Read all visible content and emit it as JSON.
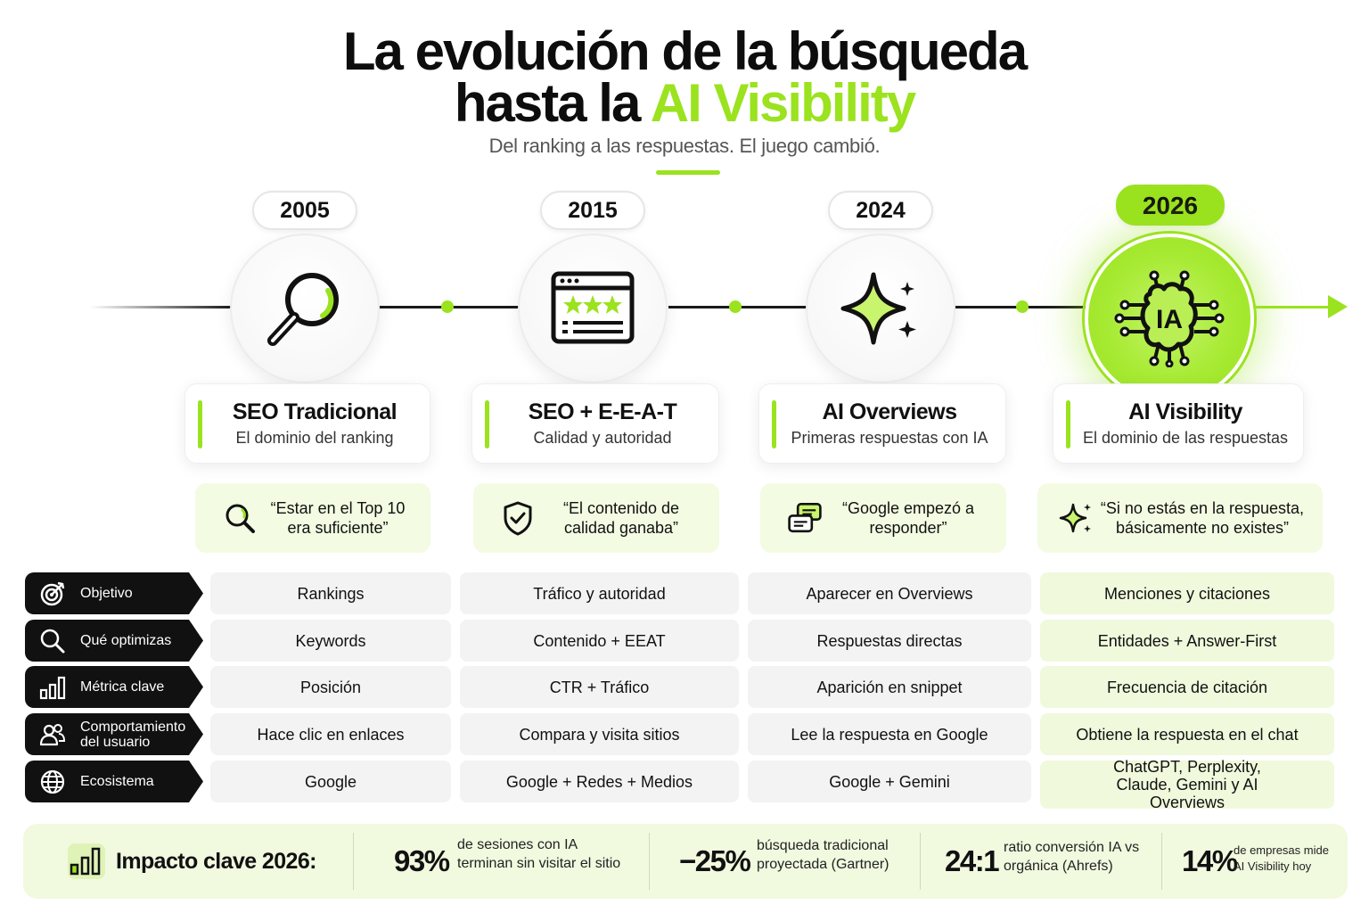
{
  "header": {
    "title_line1": "La evolución de la búsqueda",
    "title_line2_prefix": "hasta la ",
    "title_line2_accent": "AI Visibility",
    "subtitle": "Del ranking a las respuestas. El juego cambió."
  },
  "colors": {
    "accent": "#9be21f",
    "dark": "#111111",
    "light_accent_bg": "#f1f9df"
  },
  "stages": [
    {
      "year": "2005",
      "icon": "magnifier-icon",
      "name": "SEO Tradicional",
      "tagline": "El dominio del ranking",
      "quote_icon": "search-icon",
      "quote": "“Estar en el Top 10 era suficiente”",
      "highlight": false
    },
    {
      "year": "2015",
      "icon": "browser-stars-icon",
      "name": "SEO + E-E-A-T",
      "tagline": "Calidad y autoridad",
      "quote_icon": "shield-check-icon",
      "quote": "“El contenido de calidad ganaba”",
      "highlight": false
    },
    {
      "year": "2024",
      "icon": "sparkle-icon",
      "name": "AI Overviews",
      "tagline": "Primeras respuestas con IA",
      "quote_icon": "chat-bubbles-icon",
      "quote": "“Google empezó a responder”",
      "highlight": false
    },
    {
      "year": "2026",
      "icon": "ai-chip-icon",
      "icon_label": "IA",
      "name": "AI Visibility",
      "tagline": "El dominio de las respuestas",
      "quote_icon": "sparkles-icon",
      "quote": "“Si no estás en la respuesta, básicamente no existes”",
      "highlight": true
    }
  ],
  "rows": [
    {
      "label": "Objetivo",
      "icon": "target-icon",
      "values": [
        "Rankings",
        "Tráfico y autoridad",
        "Aparecer en Overviews",
        "Menciones y citaciones"
      ]
    },
    {
      "label": "Qué optimizas",
      "icon": "search-icon",
      "values": [
        "Keywords",
        "Contenido + EEAT",
        "Respuestas directas",
        "Entidades + Answer-First"
      ]
    },
    {
      "label": "Métrica clave",
      "icon": "bar-chart-icon",
      "values": [
        "Posición",
        "CTR + Tráfico",
        "Aparición en snippet",
        "Frecuencia de citación"
      ]
    },
    {
      "label": "Comportamiento del usuario",
      "icon": "users-icon",
      "values": [
        "Hace clic en enlaces",
        "Compara y visita sitios",
        "Lee la respuesta en Google",
        "Obtiene la respuesta en el chat"
      ]
    },
    {
      "label": "Ecosistema",
      "icon": "globe-icon",
      "values": [
        "Google",
        "Google + Redes + Medios",
        "Google + Gemini",
        "ChatGPT, Perplexity, Claude, Gemini y AI Overviews"
      ]
    }
  ],
  "impact": {
    "icon": "bar-chart-icon",
    "title": "Impacto clave 2026:",
    "stats": [
      {
        "value": "93%",
        "description": "de sesiones con IA terminan sin visitar el sitio"
      },
      {
        "value": "−25%",
        "description": "búsqueda tradicional proyectada (Gartner)"
      },
      {
        "value": "24:1",
        "description": "ratio conversión IA vs orgánica (Ahrefs)"
      },
      {
        "value": "14%",
        "description": "de empresas mide AI Visibility hoy"
      }
    ]
  }
}
